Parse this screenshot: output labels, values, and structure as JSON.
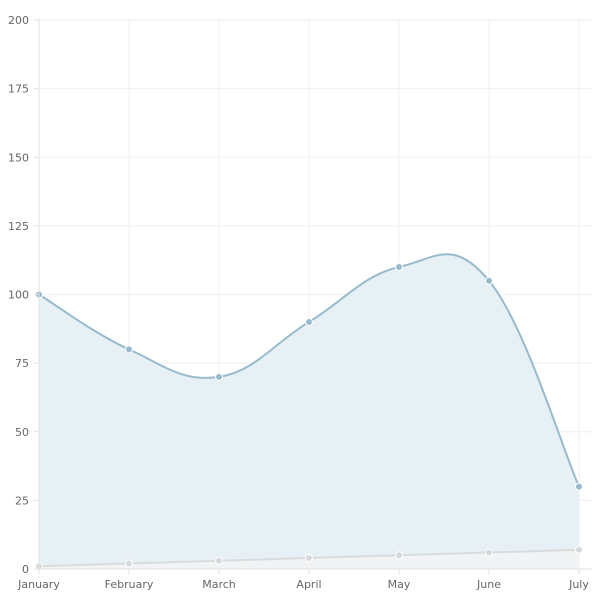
{
  "chart_data": {
    "type": "area",
    "categories": [
      "January",
      "February",
      "March",
      "April",
      "May",
      "June",
      "July"
    ],
    "series": [
      {
        "values": [
          100,
          80,
          70,
          90,
          110,
          105,
          30
        ],
        "color": "#97bbcd",
        "fill": "#e6eff3",
        "point_color": "#97bbcd"
      },
      {
        "values": [
          1,
          2,
          3,
          4,
          5,
          6,
          7
        ],
        "color": "#d9dcdd",
        "fill": "#f1f2f3",
        "point_color": "#d6d9db"
      }
    ],
    "y_ticks": [
      "0",
      "25",
      "50",
      "75",
      "100",
      "125",
      "150",
      "175",
      "200"
    ],
    "ylim": [
      0,
      200
    ],
    "grid": true,
    "curve": "smooth",
    "title": "",
    "xlabel": "",
    "ylabel": ""
  }
}
